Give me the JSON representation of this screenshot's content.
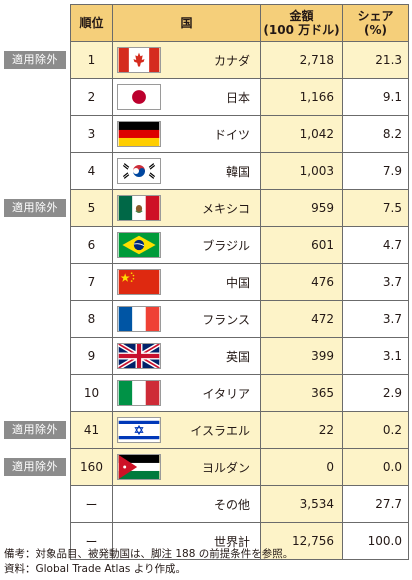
{
  "header": {
    "rank": "順位",
    "country": "国",
    "amount_line1": "金額",
    "amount_line2": "(100 万ドル)",
    "share_line1": "シェア",
    "share_line2": "(%)"
  },
  "badge_label": "適用除外",
  "rows": [
    {
      "rank": "1",
      "country": "カナダ",
      "flag": "canada-flag",
      "amount": "2,718",
      "share": "21.3",
      "highlight": true,
      "badge": true
    },
    {
      "rank": "2",
      "country": "日本",
      "flag": "japan-flag",
      "amount": "1,166",
      "share": "9.1",
      "highlight": false,
      "badge": false
    },
    {
      "rank": "3",
      "country": "ドイツ",
      "flag": "germany-flag",
      "amount": "1,042",
      "share": "8.2",
      "highlight": false,
      "badge": false
    },
    {
      "rank": "4",
      "country": "韓国",
      "flag": "korea-flag",
      "amount": "1,003",
      "share": "7.9",
      "highlight": false,
      "badge": false
    },
    {
      "rank": "5",
      "country": "メキシコ",
      "flag": "mexico-flag",
      "amount": "959",
      "share": "7.5",
      "highlight": true,
      "badge": true
    },
    {
      "rank": "6",
      "country": "ブラジル",
      "flag": "brazil-flag",
      "amount": "601",
      "share": "4.7",
      "highlight": false,
      "badge": false
    },
    {
      "rank": "7",
      "country": "中国",
      "flag": "china-flag",
      "amount": "476",
      "share": "3.7",
      "highlight": false,
      "badge": false
    },
    {
      "rank": "8",
      "country": "フランス",
      "flag": "france-flag",
      "amount": "472",
      "share": "3.7",
      "highlight": false,
      "badge": false
    },
    {
      "rank": "9",
      "country": "英国",
      "flag": "uk-flag",
      "amount": "399",
      "share": "3.1",
      "highlight": false,
      "badge": false
    },
    {
      "rank": "10",
      "country": "イタリア",
      "flag": "italy-flag",
      "amount": "365",
      "share": "2.9",
      "highlight": false,
      "badge": false
    },
    {
      "rank": "41",
      "country": "イスラエル",
      "flag": "israel-flag",
      "amount": "22",
      "share": "0.2",
      "highlight": true,
      "badge": true
    },
    {
      "rank": "160",
      "country": "ヨルダン",
      "flag": "jordan-flag",
      "amount": "0",
      "share": "0.0",
      "highlight": true,
      "badge": true
    },
    {
      "rank": "ー",
      "country": "その他",
      "flag": "",
      "amount": "3,534",
      "share": "27.7",
      "highlight": false,
      "badge": false
    },
    {
      "rank": "ー",
      "country": "世界計",
      "flag": "",
      "amount": "12,756",
      "share": "100.0",
      "highlight": false,
      "badge": false
    }
  ],
  "notes": [
    "備考：対象品目、被発動国は、脚注 188 の前提条件を参照。",
    "資料：Global Trade Atlas より作成。"
  ],
  "colors": {
    "header_bg": "#f5cf7a",
    "highlight_bg": "#fdf3c8",
    "badge_bg": "#8c8c8c"
  }
}
